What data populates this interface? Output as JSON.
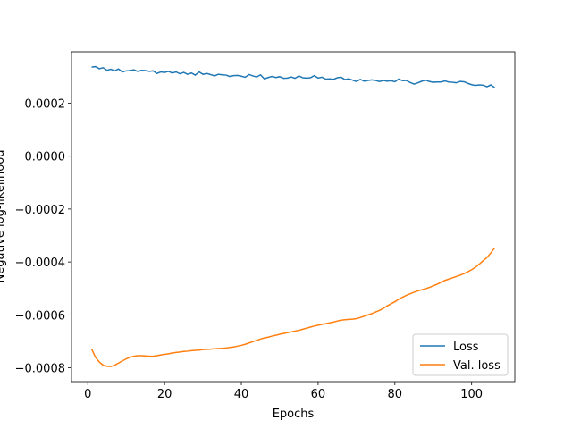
{
  "chart_data": {
    "type": "line",
    "xlabel": "Epochs",
    "ylabel": "Negative log-likelihood",
    "x": [
      1,
      2,
      3,
      4,
      5,
      6,
      7,
      8,
      9,
      10,
      11,
      12,
      13,
      14,
      15,
      16,
      17,
      18,
      19,
      20,
      21,
      22,
      23,
      24,
      25,
      26,
      27,
      28,
      29,
      30,
      31,
      32,
      33,
      34,
      35,
      36,
      37,
      38,
      39,
      40,
      41,
      42,
      43,
      44,
      45,
      46,
      47,
      48,
      49,
      50,
      51,
      52,
      53,
      54,
      55,
      56,
      57,
      58,
      59,
      60,
      61,
      62,
      63,
      64,
      65,
      66,
      67,
      68,
      69,
      70,
      71,
      72,
      73,
      74,
      75,
      76,
      77,
      78,
      79,
      80,
      81,
      82,
      83,
      84,
      85,
      86,
      87,
      88,
      89,
      90,
      91,
      92,
      93,
      94,
      95,
      96,
      97,
      98,
      99,
      100,
      101,
      102,
      103,
      104,
      105,
      106
    ],
    "series": [
      {
        "name": "Loss",
        "color": "#1f77b4",
        "values": [
          0.000336,
          0.000338,
          0.00033,
          0.000334,
          0.000324,
          0.000328,
          0.000322,
          0.000329,
          0.000318,
          0.000322,
          0.000323,
          0.000326,
          0.00032,
          0.000324,
          0.000323,
          0.00032,
          0.000322,
          0.000312,
          0.000318,
          0.000316,
          0.00032,
          0.000314,
          0.000318,
          0.000311,
          0.000316,
          0.000309,
          0.000314,
          0.000306,
          0.000318,
          0.000309,
          0.000312,
          0.000308,
          0.000303,
          0.000309,
          0.000307,
          0.000306,
          0.000301,
          0.000304,
          0.000305,
          0.000302,
          0.000298,
          0.000308,
          0.000303,
          0.000299,
          0.000307,
          0.000292,
          0.000297,
          0.000301,
          0.000297,
          0.0003,
          0.000294,
          0.000295,
          0.000299,
          0.000294,
          0.000303,
          0.000296,
          0.000295,
          0.000296,
          0.000304,
          0.000295,
          0.000298,
          0.000291,
          0.000292,
          0.00029,
          0.000296,
          0.000298,
          0.000289,
          0.000292,
          0.000287,
          0.000282,
          0.00029,
          0.000283,
          0.000286,
          0.000288,
          0.000286,
          0.000282,
          0.000286,
          0.000283,
          0.000285,
          0.000281,
          0.000291,
          0.000285,
          0.000286,
          0.000278,
          0.000272,
          0.000277,
          0.000283,
          0.000287,
          0.000282,
          0.000279,
          0.00028,
          0.00028,
          0.000284,
          0.00028,
          0.000279,
          0.000277,
          0.000282,
          0.000281,
          0.000275,
          0.00027,
          0.000267,
          0.000269,
          0.000268,
          0.000262,
          0.000269,
          0.000259
        ]
      },
      {
        "name": "Val. loss",
        "color": "#ff7f0e",
        "values": [
          -0.000729,
          -0.00076,
          -0.000778,
          -0.00079,
          -0.000794,
          -0.000795,
          -0.00079,
          -0.000782,
          -0.000774,
          -0.000766,
          -0.00076,
          -0.000756,
          -0.000754,
          -0.000754,
          -0.000755,
          -0.000756,
          -0.000756,
          -0.000754,
          -0.000751,
          -0.000749,
          -0.000747,
          -0.000744,
          -0.000742,
          -0.00074,
          -0.000738,
          -0.000737,
          -0.000735,
          -0.000734,
          -0.000733,
          -0.000731,
          -0.00073,
          -0.000729,
          -0.000728,
          -0.000727,
          -0.000726,
          -0.000725,
          -0.000723,
          -0.000721,
          -0.000718,
          -0.000715,
          -0.000711,
          -0.000706,
          -0.000701,
          -0.000696,
          -0.000691,
          -0.000687,
          -0.000684,
          -0.00068,
          -0.000677,
          -0.000673,
          -0.00067,
          -0.000667,
          -0.000664,
          -0.000661,
          -0.000658,
          -0.000654,
          -0.00065,
          -0.000646,
          -0.000642,
          -0.000639,
          -0.000636,
          -0.000633,
          -0.00063,
          -0.000627,
          -0.000623,
          -0.00062,
          -0.000618,
          -0.000617,
          -0.000616,
          -0.000614,
          -0.00061,
          -0.000605,
          -0.0006,
          -0.000595,
          -0.000589,
          -0.000583,
          -0.000575,
          -0.000566,
          -0.000558,
          -0.00055,
          -0.000541,
          -0.000533,
          -0.000526,
          -0.00052,
          -0.000514,
          -0.000509,
          -0.000505,
          -0.000501,
          -0.000496,
          -0.00049,
          -0.000484,
          -0.000477,
          -0.00047,
          -0.000465,
          -0.00046,
          -0.000455,
          -0.00045,
          -0.000444,
          -0.000437,
          -0.000429,
          -0.00042,
          -0.000408,
          -0.000395,
          -0.000383,
          -0.000366,
          -0.000347
        ]
      }
    ],
    "xlim": [
      -4.25,
      111.25
    ],
    "xticks": [
      0,
      20,
      40,
      60,
      80,
      100
    ],
    "ylim": [
      -0.000852,
      0.000394
    ],
    "yticks": [
      {
        "value": -0.0008,
        "label": "−0.0008"
      },
      {
        "value": -0.0006,
        "label": "−0.0006"
      },
      {
        "value": -0.0004,
        "label": "−0.0004"
      },
      {
        "value": -0.0002,
        "label": "−0.0002"
      },
      {
        "value": 0,
        "label": "0.0000"
      },
      0.0002
    ],
    "legend": "lower right",
    "grid": false
  }
}
